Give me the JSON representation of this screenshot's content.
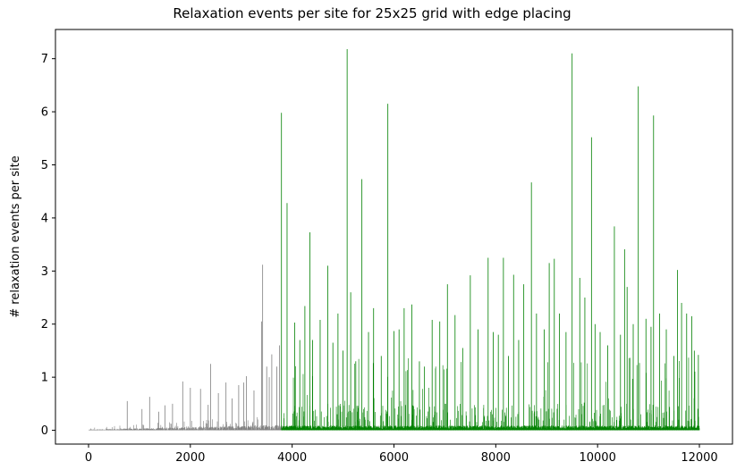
{
  "chart_data": {
    "type": "bar",
    "title": "Relaxation events per site for 25x25 grid with edge placing",
    "xlabel": "",
    "ylabel": "# relaxation events per site",
    "xlim": [
      -650,
      12650
    ],
    "ylim": [
      -0.26,
      7.55
    ],
    "xticks": [
      0,
      2000,
      4000,
      6000,
      8000,
      10000,
      12000
    ],
    "xtick_labels": [
      "0",
      "2000",
      "4000",
      "6000",
      "8000",
      "10000",
      "12000"
    ],
    "yticks": [
      0,
      1,
      2,
      3,
      4,
      5,
      6,
      7
    ],
    "ytick_labels": [
      "0",
      "1",
      "2",
      "3",
      "4",
      "5",
      "6",
      "7"
    ],
    "grid": false,
    "legend": "none",
    "series": [
      {
        "color": "#808080",
        "x_range": [
          0,
          3800
        ],
        "peaks": [
          [
            760,
            0.55
          ],
          [
            1050,
            0.4
          ],
          [
            1200,
            0.63
          ],
          [
            1380,
            0.35
          ],
          [
            1500,
            0.47
          ],
          [
            1650,
            0.5
          ],
          [
            1850,
            0.92
          ],
          [
            2000,
            0.8
          ],
          [
            2200,
            0.78
          ],
          [
            2350,
            0.48
          ],
          [
            2400,
            1.25
          ],
          [
            2550,
            0.7
          ],
          [
            2700,
            0.9
          ],
          [
            2820,
            0.6
          ],
          [
            2950,
            0.85
          ],
          [
            3050,
            0.9
          ],
          [
            3100,
            1.02
          ],
          [
            3250,
            0.75
          ],
          [
            3400,
            2.05
          ],
          [
            3420,
            3.12
          ],
          [
            3500,
            1.2
          ],
          [
            3550,
            1.0
          ],
          [
            3600,
            1.43
          ],
          [
            3700,
            1.2
          ],
          [
            3750,
            1.6
          ]
        ]
      },
      {
        "color": "#008000",
        "x_range": [
          3800,
          12000
        ],
        "peaks": [
          [
            3790,
            5.98
          ],
          [
            3900,
            4.28
          ],
          [
            4050,
            2.03
          ],
          [
            4150,
            1.7
          ],
          [
            4250,
            2.34
          ],
          [
            4350,
            3.73
          ],
          [
            4400,
            1.7
          ],
          [
            4550,
            2.08
          ],
          [
            4700,
            3.1
          ],
          [
            4800,
            1.65
          ],
          [
            4900,
            2.2
          ],
          [
            5000,
            1.5
          ],
          [
            5080,
            7.18
          ],
          [
            5150,
            2.6
          ],
          [
            5250,
            1.3
          ],
          [
            5370,
            4.73
          ],
          [
            5500,
            1.85
          ],
          [
            5600,
            2.3
          ],
          [
            5750,
            1.4
          ],
          [
            5880,
            6.15
          ],
          [
            6000,
            1.87
          ],
          [
            6100,
            1.9
          ],
          [
            6200,
            2.3
          ],
          [
            6350,
            2.37
          ],
          [
            6500,
            1.3
          ],
          [
            6600,
            1.2
          ],
          [
            6750,
            2.08
          ],
          [
            6900,
            2.05
          ],
          [
            7050,
            2.75
          ],
          [
            7200,
            2.17
          ],
          [
            7350,
            1.55
          ],
          [
            7500,
            2.92
          ],
          [
            7650,
            1.9
          ],
          [
            7850,
            3.25
          ],
          [
            7950,
            1.85
          ],
          [
            8050,
            1.8
          ],
          [
            8150,
            3.25
          ],
          [
            8250,
            1.4
          ],
          [
            8350,
            2.93
          ],
          [
            8450,
            1.7
          ],
          [
            8550,
            2.75
          ],
          [
            8700,
            4.67
          ],
          [
            8800,
            2.2
          ],
          [
            8950,
            1.9
          ],
          [
            9050,
            3.15
          ],
          [
            9150,
            3.23
          ],
          [
            9250,
            2.2
          ],
          [
            9380,
            1.85
          ],
          [
            9500,
            7.1
          ],
          [
            9650,
            2.87
          ],
          [
            9750,
            2.5
          ],
          [
            9880,
            5.52
          ],
          [
            9950,
            2.0
          ],
          [
            10050,
            1.85
          ],
          [
            10200,
            1.6
          ],
          [
            10330,
            3.84
          ],
          [
            10450,
            1.8
          ],
          [
            10530,
            3.41
          ],
          [
            10580,
            2.7
          ],
          [
            10700,
            2.0
          ],
          [
            10800,
            6.48
          ],
          [
            10950,
            2.1
          ],
          [
            11050,
            1.95
          ],
          [
            11100,
            5.93
          ],
          [
            11220,
            2.2
          ],
          [
            11350,
            1.9
          ],
          [
            11500,
            1.4
          ],
          [
            11570,
            3.02
          ],
          [
            11650,
            2.4
          ],
          [
            11750,
            2.2
          ],
          [
            11850,
            2.15
          ],
          [
            11900,
            1.5
          ],
          [
            11980,
            1.42
          ]
        ]
      }
    ]
  }
}
